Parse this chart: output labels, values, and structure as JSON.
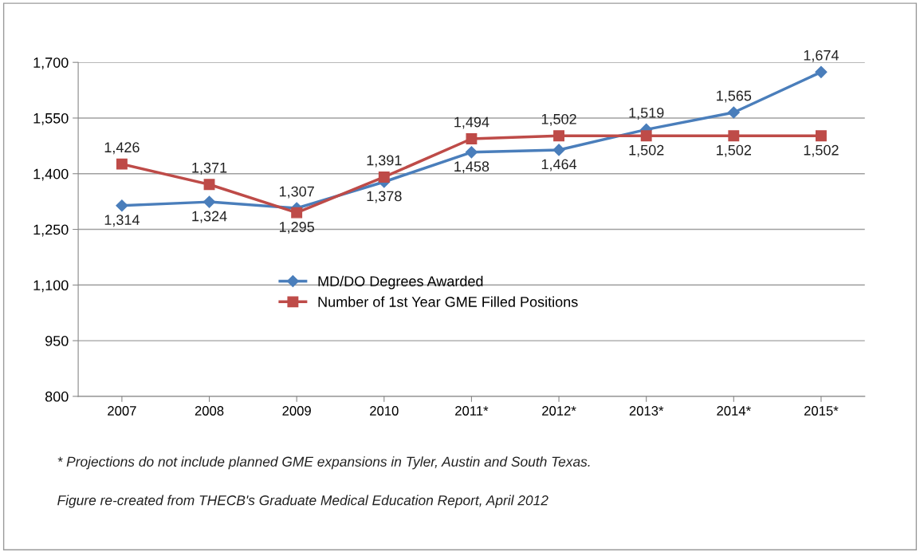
{
  "chart_data": {
    "type": "line",
    "categories": [
      "2007",
      "2008",
      "2009",
      "2010",
      "2011*",
      "2012*",
      "2013*",
      "2014*",
      "2015*"
    ],
    "series": [
      {
        "name": "MD/DO Degrees Awarded",
        "color": "#4a7ebb",
        "marker": "diamond",
        "values": [
          1314,
          1324,
          1307,
          1378,
          1458,
          1464,
          1519,
          1565,
          1674
        ],
        "value_labels": [
          "1,314",
          "1,324",
          "1,307",
          "1,378",
          "1,458",
          "1,464",
          "1,519",
          "1,565",
          "1,674"
        ]
      },
      {
        "name": "Number of 1st Year GME Filled Positions",
        "color": "#be4b48",
        "marker": "square",
        "values": [
          1426,
          1371,
          1295,
          1391,
          1494,
          1502,
          1502,
          1502,
          1502
        ],
        "value_labels": [
          "1,426",
          "1,371",
          "1,295",
          "1,391",
          "1,494",
          "1,502",
          "1,502",
          "1,502",
          "1,502"
        ]
      }
    ],
    "ylim": [
      800,
      1700
    ],
    "yticks": [
      {
        "value": 800,
        "label": "800"
      },
      {
        "value": 950,
        "label": "950"
      },
      {
        "value": 1100,
        "label": "1,100"
      },
      {
        "value": 1250,
        "label": "1,250"
      },
      {
        "value": 1400,
        "label": "1,400"
      },
      {
        "value": 1550,
        "label": "1,550"
      },
      {
        "value": 1700,
        "label": "1,700"
      }
    ],
    "grid": "y",
    "legend": "center",
    "line_style": "solid",
    "annotations": [
      "* Projections do not include planned GME expansions in Tyler, Austin and South Texas.",
      "Figure re-created from THECB's Graduate Medical Education Report, April 2012"
    ]
  }
}
